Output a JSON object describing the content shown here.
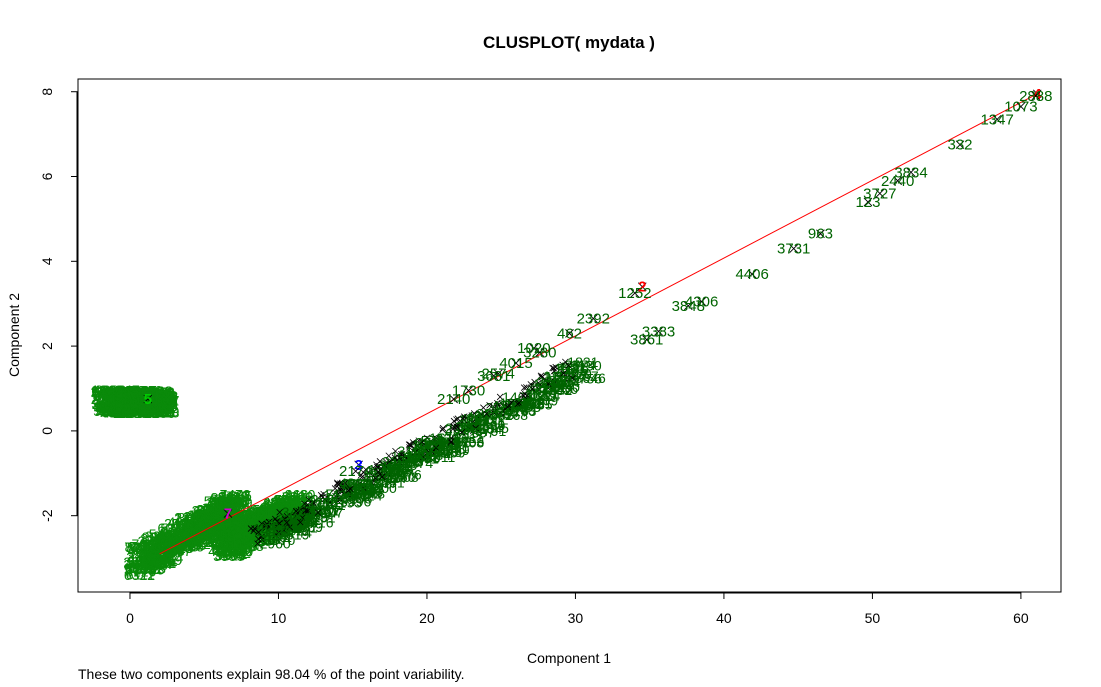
{
  "chart_data": {
    "type": "scatter",
    "title": "CLUSPLOT( mydata )",
    "xlabel": "Component 1",
    "ylabel": "Component 2",
    "footnote": "These two components explain 98.04 % of the point variability.",
    "xlim": [
      -3.5,
      62.7
    ],
    "ylim": [
      -3.8,
      8.3
    ],
    "x_ticks": [
      0,
      10,
      20,
      30,
      40,
      50,
      60
    ],
    "y_ticks": [
      -2,
      0,
      2,
      4,
      6,
      8
    ],
    "colors": {
      "points": "#006400",
      "line": "#ff0000",
      "axis": "#000000"
    },
    "dense_bands": [
      {
        "x": [
          -1.6,
          2.3
        ],
        "y": [
          0.3,
          0.85
        ],
        "color": "#0a8a0a"
      },
      {
        "x": [
          0.6,
          7.3
        ],
        "y": [
          -3.2,
          -1.85
        ],
        "color": "#0a8a0a"
      },
      {
        "x": [
          6.3,
          11.5
        ],
        "y": [
          -2.8,
          -1.9
        ],
        "color": "#0a8a0a"
      }
    ],
    "labeled_points": [
      {
        "label": "5",
        "x": 1.2,
        "y": 0.75,
        "color": "#00cc00"
      },
      {
        "label": "7",
        "x": 6.6,
        "y": -1.95,
        "color": "#cc00cc"
      },
      {
        "label": "3",
        "x": 15.4,
        "y": -0.8,
        "color": "#0000ff"
      },
      {
        "label": "2",
        "x": 34.5,
        "y": 3.4,
        "color": "#ff0000"
      },
      {
        "label": "4",
        "x": 61.1,
        "y": 7.95,
        "color": "#ff0000"
      },
      {
        "label": "1252",
        "x": 34.0,
        "y": 3.25,
        "color": "#006400"
      },
      {
        "label": "2392",
        "x": 31.2,
        "y": 2.65,
        "color": "#006400"
      },
      {
        "label": "462",
        "x": 29.6,
        "y": 2.3,
        "color": "#006400"
      },
      {
        "label": "3861",
        "x": 34.8,
        "y": 2.15,
        "color": "#006400"
      },
      {
        "label": "3383",
        "x": 35.6,
        "y": 2.35,
        "color": "#006400"
      },
      {
        "label": "3848",
        "x": 37.6,
        "y": 2.95,
        "color": "#006400"
      },
      {
        "label": "4306",
        "x": 38.5,
        "y": 3.05,
        "color": "#006400"
      },
      {
        "label": "4406",
        "x": 41.9,
        "y": 3.7,
        "color": "#006400"
      },
      {
        "label": "3731",
        "x": 44.7,
        "y": 4.3,
        "color": "#006400"
      },
      {
        "label": "963",
        "x": 46.5,
        "y": 4.65,
        "color": "#006400"
      },
      {
        "label": "123",
        "x": 49.7,
        "y": 5.4,
        "color": "#006400"
      },
      {
        "label": "3727",
        "x": 50.5,
        "y": 5.6,
        "color": "#006400"
      },
      {
        "label": "2440",
        "x": 51.7,
        "y": 5.9,
        "color": "#006400"
      },
      {
        "label": "3834",
        "x": 52.6,
        "y": 6.1,
        "color": "#006400"
      },
      {
        "label": "332",
        "x": 55.9,
        "y": 6.75,
        "color": "#006400"
      },
      {
        "label": "1347",
        "x": 58.4,
        "y": 7.35,
        "color": "#006400"
      },
      {
        "label": "1073",
        "x": 60.0,
        "y": 7.65,
        "color": "#006400"
      },
      {
        "label": "2888",
        "x": 61.0,
        "y": 7.9,
        "color": "#006400"
      },
      {
        "label": "1730",
        "x": 22.8,
        "y": 0.95,
        "color": "#006400"
      },
      {
        "label": "2140",
        "x": 21.8,
        "y": 0.75,
        "color": "#006400"
      },
      {
        "label": "2574",
        "x": 24.8,
        "y": 1.35,
        "color": "#006400"
      },
      {
        "label": "3681",
        "x": 24.5,
        "y": 1.3,
        "color": "#006400"
      },
      {
        "label": "4015",
        "x": 26.0,
        "y": 1.6,
        "color": "#006400"
      },
      {
        "label": "1020",
        "x": 27.2,
        "y": 1.95,
        "color": "#006400"
      },
      {
        "label": "3280",
        "x": 27.6,
        "y": 1.85,
        "color": "#006400"
      },
      {
        "label": "2174",
        "x": 15.2,
        "y": -0.95,
        "color": "#006400"
      }
    ]
  }
}
